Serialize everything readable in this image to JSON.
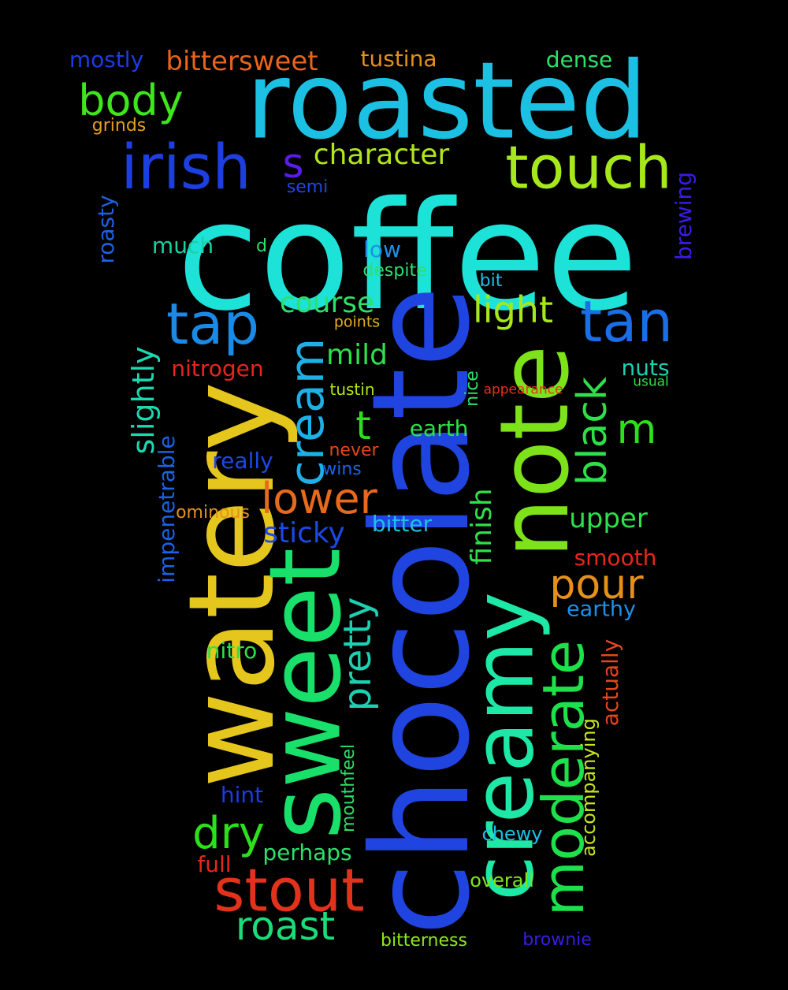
{
  "words": [
    {
      "text": "coffee",
      "color": "#1de2d8"
    },
    {
      "text": "chocolate",
      "color": "#1f44e0"
    },
    {
      "text": "watery",
      "color": "#e5c61c"
    },
    {
      "text": "roasted",
      "color": "#1cc0e2"
    },
    {
      "text": "sweet",
      "color": "#18e06a"
    },
    {
      "text": "note",
      "color": "#7ee21a"
    },
    {
      "text": "creamy",
      "color": "#1de8a6"
    },
    {
      "text": "irish",
      "color": "#1e3fe0"
    },
    {
      "text": "touch",
      "color": "#a6e81c"
    },
    {
      "text": "moderate",
      "color": "#1ee04a"
    },
    {
      "text": "stout",
      "color": "#e2321c"
    },
    {
      "text": "tap",
      "color": "#1a8ae6"
    },
    {
      "text": "tan",
      "color": "#1a6ee6"
    },
    {
      "text": "cream",
      "color": "#1cb0e6"
    },
    {
      "text": "body",
      "color": "#3ee61c"
    },
    {
      "text": "lower",
      "color": "#e66a1c"
    },
    {
      "text": "pour",
      "color": "#e6901c"
    },
    {
      "text": "dry",
      "color": "#2ee01c"
    },
    {
      "text": "roast",
      "color": "#1cdc7a"
    },
    {
      "text": "black",
      "color": "#2ee04a"
    },
    {
      "text": "light",
      "color": "#a6e81c"
    },
    {
      "text": "pretty",
      "color": "#1cd0b0"
    },
    {
      "text": "character",
      "color": "#b0e61c"
    },
    {
      "text": "course",
      "color": "#2ee06a"
    },
    {
      "text": "slightly",
      "color": "#1cd8b0"
    },
    {
      "text": "m",
      "color": "#2ee01c"
    },
    {
      "text": "t",
      "color": "#2ee01c"
    },
    {
      "text": "s",
      "color": "#5a1ce6"
    },
    {
      "text": "mild",
      "color": "#2ee04a"
    },
    {
      "text": "sticky",
      "color": "#1c48e6"
    },
    {
      "text": "finish",
      "color": "#2ee04a"
    },
    {
      "text": "upper",
      "color": "#2ee04a"
    },
    {
      "text": "bittersweet",
      "color": "#e6641c"
    },
    {
      "text": "nitrogen",
      "color": "#e6261c"
    },
    {
      "text": "smooth",
      "color": "#e6261c"
    },
    {
      "text": "earthy",
      "color": "#1c90e6"
    },
    {
      "text": "nuts",
      "color": "#1cd0b0"
    },
    {
      "text": "earth",
      "color": "#2ee04a"
    },
    {
      "text": "bitter",
      "color": "#1cc0e6"
    },
    {
      "text": "tustina",
      "color": "#e6901c"
    },
    {
      "text": "dense",
      "color": "#2ee06a"
    },
    {
      "text": "mostly",
      "color": "#1c3ce6"
    },
    {
      "text": "much",
      "color": "#1cd0a0"
    },
    {
      "text": "low",
      "color": "#1c90e6"
    },
    {
      "text": "roasty",
      "color": "#1c62e6"
    },
    {
      "text": "brewing",
      "color": "#3a1ce6"
    },
    {
      "text": "impenetrable",
      "color": "#1c62e6"
    },
    {
      "text": "actually",
      "color": "#e6461c"
    },
    {
      "text": "accompanying",
      "color": "#c8e61c"
    },
    {
      "text": "nitro",
      "color": "#2ee04a"
    },
    {
      "text": "hint",
      "color": "#1c3ce6"
    },
    {
      "text": "really",
      "color": "#1c48e6"
    },
    {
      "text": "perhaps",
      "color": "#2ee06a"
    },
    {
      "text": "full",
      "color": "#e6261c"
    },
    {
      "text": "chewy",
      "color": "#1cc0e6"
    },
    {
      "text": "overall",
      "color": "#7ee61c"
    },
    {
      "text": "bitterness",
      "color": "#8ee61c"
    },
    {
      "text": "brownie",
      "color": "#3a1ce6"
    },
    {
      "text": "mouthfeel",
      "color": "#2ee06a"
    },
    {
      "text": "ominous",
      "color": "#e6901c"
    },
    {
      "text": "never",
      "color": "#e6461c"
    },
    {
      "text": "wins",
      "color": "#1c62e6"
    },
    {
      "text": "tustin",
      "color": "#b0e61c"
    },
    {
      "text": "nice",
      "color": "#2ee06a"
    },
    {
      "text": "appearance",
      "color": "#e6321c"
    },
    {
      "text": "usual",
      "color": "#2ee04a"
    },
    {
      "text": "points",
      "color": "#e6b01c"
    },
    {
      "text": "despite",
      "color": "#2ee06a"
    },
    {
      "text": "bit",
      "color": "#1cc0e6"
    },
    {
      "text": "grinds",
      "color": "#e6a01c"
    },
    {
      "text": "semi",
      "color": "#1c48e6"
    },
    {
      "text": "d",
      "color": "#2ee06a"
    }
  ]
}
